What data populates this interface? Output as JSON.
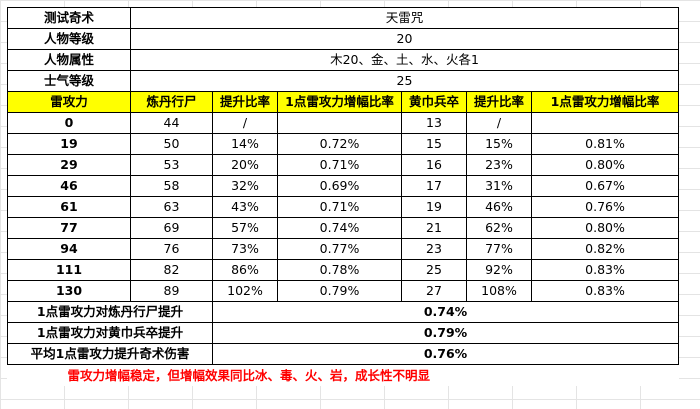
{
  "info": [
    {
      "label": "测试奇术",
      "value": "天雷咒"
    },
    {
      "label": "人物等级",
      "value": "20"
    },
    {
      "label": "人物属性",
      "value": "木20、金、土、水、火各1"
    },
    {
      "label": "士气等级",
      "value": "25"
    }
  ],
  "headers": [
    "雷攻力",
    "炼丹行尸",
    "提升比率",
    "1点雷攻力增幅比率",
    "黄巾兵卒",
    "提升比率",
    "1点雷攻力增幅比率"
  ],
  "rows": [
    [
      "0",
      "44",
      "/",
      "",
      "13",
      "/",
      ""
    ],
    [
      "19",
      "50",
      "14%",
      "0.72%",
      "15",
      "15%",
      "0.81%"
    ],
    [
      "29",
      "53",
      "20%",
      "0.71%",
      "16",
      "23%",
      "0.80%"
    ],
    [
      "46",
      "58",
      "32%",
      "0.69%",
      "17",
      "31%",
      "0.67%"
    ],
    [
      "61",
      "63",
      "43%",
      "0.71%",
      "19",
      "46%",
      "0.76%"
    ],
    [
      "77",
      "69",
      "57%",
      "0.74%",
      "21",
      "62%",
      "0.80%"
    ],
    [
      "94",
      "76",
      "73%",
      "0.77%",
      "23",
      "77%",
      "0.82%"
    ],
    [
      "111",
      "82",
      "86%",
      "0.78%",
      "25",
      "92%",
      "0.83%"
    ],
    [
      "130",
      "89",
      "102%",
      "0.79%",
      "27",
      "108%",
      "0.83%"
    ]
  ],
  "summary": [
    {
      "label": "1点雷攻力对炼丹行尸提升",
      "value": "0.74%"
    },
    {
      "label": "1点雷攻力对黄巾兵卒提升",
      "value": "0.79%"
    },
    {
      "label": "平均1点雷攻力提升奇术伤害",
      "value": "0.76%"
    }
  ],
  "note": "雷攻力增幅稳定，但增幅效果同比冰、毒、火、岩，成长性不明显"
}
